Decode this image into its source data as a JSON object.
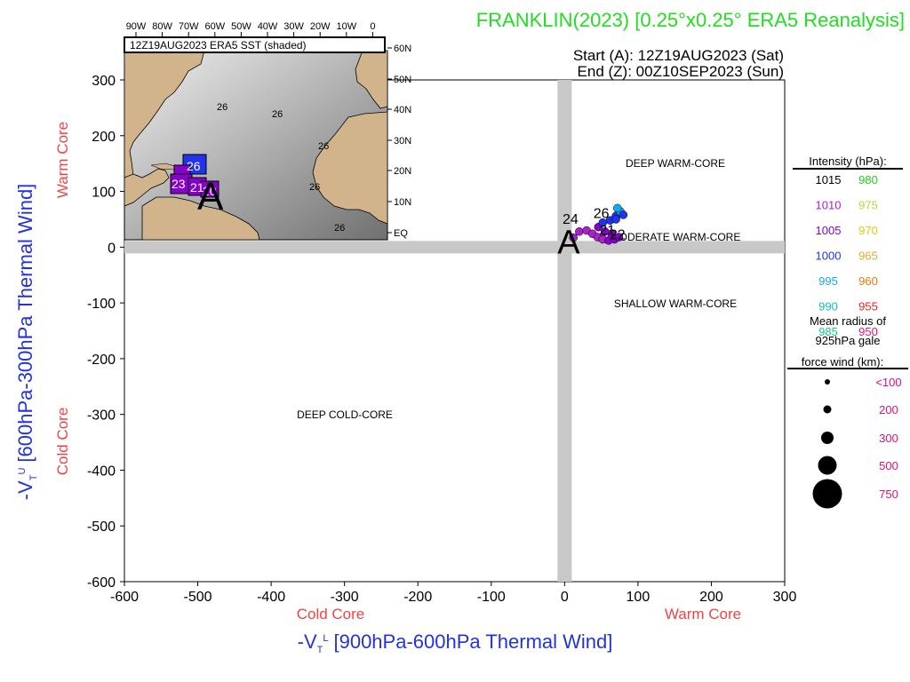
{
  "header": {
    "title": "FRANKLIN(2023) [0.25°x0.25° ERA5 Reanalysis]",
    "start": "Start (A): 12Z19AUG2023 (Sat)",
    "end": "End (Z): 00Z10SEP2023 (Sun)"
  },
  "colors": {
    "title": "#22dd22",
    "axis_title": "#2233dd",
    "core_label": "#ee4444",
    "radius_label": "#dd1177",
    "grid_band": "#c8c8c8"
  },
  "chart_data": {
    "type": "scatter",
    "xlabel_prefix": "-V",
    "xlabel_sub": "T",
    "xlabel_sup": "L",
    "xlabel_text": "[900hPa-600hPa Thermal Wind]",
    "ylabel_prefix": "-V",
    "ylabel_sub": "T",
    "ylabel_sup": "U",
    "ylabel_text": "[600hPa-300hPa Thermal Wind]",
    "xlim": [
      -600,
      300
    ],
    "ylim": [
      -600,
      300
    ],
    "x_ticks": [
      -600,
      -500,
      -400,
      -300,
      -200,
      -100,
      0,
      100,
      200,
      300
    ],
    "y_ticks": [
      300,
      200,
      100,
      0,
      -100,
      -200,
      -300,
      -400,
      -500,
      -600
    ],
    "x_core_labels": {
      "left": "Cold Core",
      "right": "Warm Core"
    },
    "y_core_labels": {
      "top": "Warm Core",
      "bottom": "Cold Core"
    },
    "quadrant_labels": {
      "deep_warm": "DEEP WARM-CORE",
      "moderate_warm": "MODERATE WARM-CORE",
      "shallow_warm": "SHALLOW WARM-CORE",
      "deep_cold": "DEEP COLD-CORE"
    },
    "start_marker": "A",
    "start_point": {
      "x": 12,
      "y": 17
    },
    "day_labels": [
      {
        "text": "24",
        "x": 8,
        "y": 42
      },
      {
        "text": "26",
        "x": 50,
        "y": 52
      },
      {
        "text": "21",
        "x": 58,
        "y": 22
      },
      {
        "text": "22",
        "x": 72,
        "y": 14
      }
    ],
    "track": [
      {
        "x": 12,
        "y": 17,
        "p": 1010
      },
      {
        "x": 20,
        "y": 28,
        "p": 1008
      },
      {
        "x": 30,
        "y": 30,
        "p": 1008
      },
      {
        "x": 38,
        "y": 24,
        "p": 1007
      },
      {
        "x": 45,
        "y": 18,
        "p": 1006
      },
      {
        "x": 52,
        "y": 14,
        "p": 1006
      },
      {
        "x": 60,
        "y": 12,
        "p": 1005
      },
      {
        "x": 68,
        "y": 14,
        "p": 1004
      },
      {
        "x": 74,
        "y": 18,
        "p": 1003
      },
      {
        "x": 64,
        "y": 24,
        "p": 1004
      },
      {
        "x": 55,
        "y": 28,
        "p": 1004
      },
      {
        "x": 46,
        "y": 36,
        "p": 1002
      },
      {
        "x": 52,
        "y": 44,
        "p": 1000
      },
      {
        "x": 62,
        "y": 48,
        "p": 999
      },
      {
        "x": 70,
        "y": 56,
        "p": 997
      },
      {
        "x": 76,
        "y": 64,
        "p": 995
      },
      {
        "x": 72,
        "y": 70,
        "p": 995
      },
      {
        "x": 80,
        "y": 58,
        "p": 1000
      },
      {
        "x": 70,
        "y": 50,
        "p": 1000
      }
    ],
    "legend": {
      "intensity_title": "Intensity (hPa):",
      "intensity": [
        {
          "label": "1015",
          "color": "#000000"
        },
        {
          "label": "980",
          "color": "#22cc22"
        },
        {
          "label": "1010",
          "color": "#aa22cc"
        },
        {
          "label": "975",
          "color": "#aadd33"
        },
        {
          "label": "1005",
          "color": "#8800cc"
        },
        {
          "label": "970",
          "color": "#ddcc00"
        },
        {
          "label": "1000",
          "color": "#2233ee"
        },
        {
          "label": "965",
          "color": "#ddaa33"
        },
        {
          "label": "995",
          "color": "#11aaee"
        },
        {
          "label": "960",
          "color": "#ee7700"
        },
        {
          "label": "990",
          "color": "#11bbbb"
        },
        {
          "label": "955",
          "color": "#ee2222"
        },
        {
          "label": "985",
          "color": "#11cc88"
        },
        {
          "label": "950",
          "color": "#ee1177"
        }
      ],
      "radius_title_1": "Mean radius of",
      "radius_title_2": "925hPa gale",
      "radius_title_3": "force wind (km):",
      "radius": [
        "<100",
        "200",
        "300",
        "500",
        "750"
      ]
    },
    "inset": {
      "title": "12Z19AUG2023 ERA5 SST (shaded)",
      "lon_labels": [
        "90W",
        "80W",
        "70W",
        "60W",
        "50W",
        "40W",
        "30W",
        "20W",
        "10W",
        "0"
      ],
      "lat_labels": [
        "60N",
        "50N",
        "40N",
        "30N",
        "20N",
        "10N",
        "EQ"
      ],
      "contour_labels": [
        "26",
        "26",
        "26",
        "26",
        "26"
      ],
      "track_labels": [
        "26",
        "23",
        "21",
        "20"
      ],
      "start_marker": "A"
    }
  }
}
